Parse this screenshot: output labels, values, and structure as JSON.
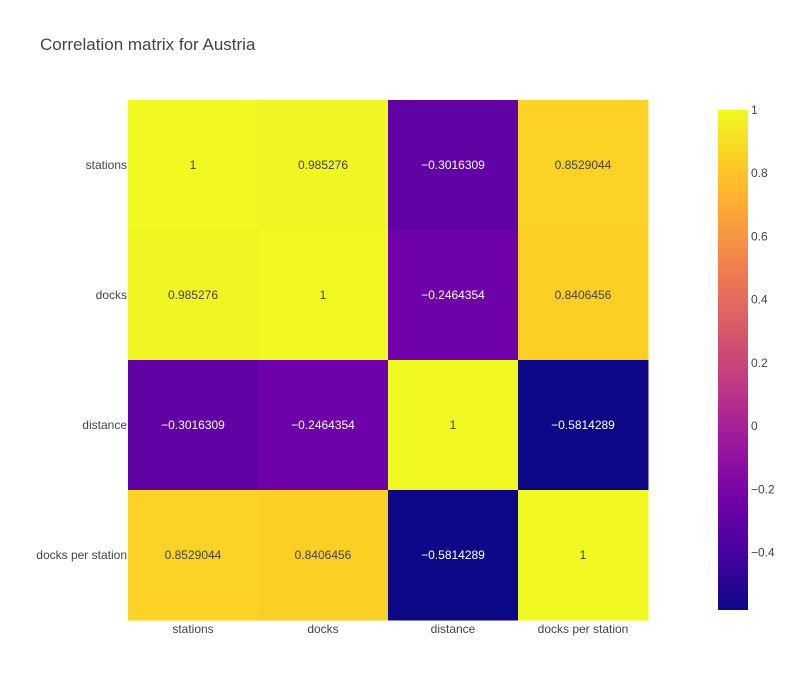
{
  "chart_data": {
    "type": "heatmap",
    "title": "Correlation matrix for Austria",
    "x_categories": [
      "stations",
      "docks",
      "distance",
      "docks per station"
    ],
    "y_categories": [
      "stations",
      "docks",
      "distance",
      "docks per station"
    ],
    "values": [
      [
        1,
        0.985276,
        -0.3016309,
        0.8529044
      ],
      [
        0.985276,
        1,
        -0.2464354,
        0.8406456
      ],
      [
        -0.3016309,
        -0.2464354,
        1,
        -0.5814289
      ],
      [
        0.8529044,
        0.8406456,
        -0.5814289,
        1
      ]
    ],
    "cell_labels": [
      [
        "1",
        "0.985276",
        "−0.3016309",
        "0.8529044"
      ],
      [
        "0.985276",
        "1",
        "−0.2464354",
        "0.8406456"
      ],
      [
        "−0.3016309",
        "−0.2464354",
        "1",
        "−0.5814289"
      ],
      [
        "0.8529044",
        "0.8406456",
        "−0.5814289",
        "1"
      ]
    ],
    "colorscale": "plasma",
    "zmin": -0.5814289,
    "zmax": 1,
    "colorbar": {
      "ticks": [
        1,
        0.8,
        0.6,
        0.4,
        0.2,
        0,
        -0.2,
        -0.4
      ],
      "tick_labels": [
        "1",
        "0.8",
        "0.6",
        "0.4",
        "0.2",
        "0",
        "−0.2",
        "−0.4"
      ]
    },
    "legend_position": "right"
  }
}
